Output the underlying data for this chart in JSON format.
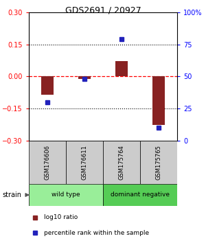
{
  "title": "GDS2691 / 20927",
  "samples": [
    "GSM176606",
    "GSM176611",
    "GSM175764",
    "GSM175765"
  ],
  "log10_ratio": [
    -0.085,
    -0.012,
    0.072,
    -0.225
  ],
  "percentile_rank": [
    30,
    48,
    79,
    10
  ],
  "groups": [
    {
      "label": "wild type",
      "samples": [
        0,
        1
      ],
      "color": "#99EE99"
    },
    {
      "label": "dominant negative",
      "samples": [
        2,
        3
      ],
      "color": "#55CC55"
    }
  ],
  "ylim": [
    -0.3,
    0.3
  ],
  "y2lim": [
    0,
    100
  ],
  "yticks": [
    -0.3,
    -0.15,
    0,
    0.15,
    0.3
  ],
  "y2ticks": [
    0,
    25,
    50,
    75,
    100
  ],
  "bar_color": "#882222",
  "dot_color": "#2222BB",
  "bar_width": 0.35,
  "dot_size": 5,
  "legend_bar_label": "log10 ratio",
  "legend_dot_label": "percentile rank within the sample",
  "strain_label": "strain",
  "background_color": "#ffffff",
  "sample_box_color": "#CCCCCC",
  "title_fontsize": 9,
  "tick_fontsize": 7,
  "label_fontsize": 6,
  "legend_fontsize": 6.5
}
